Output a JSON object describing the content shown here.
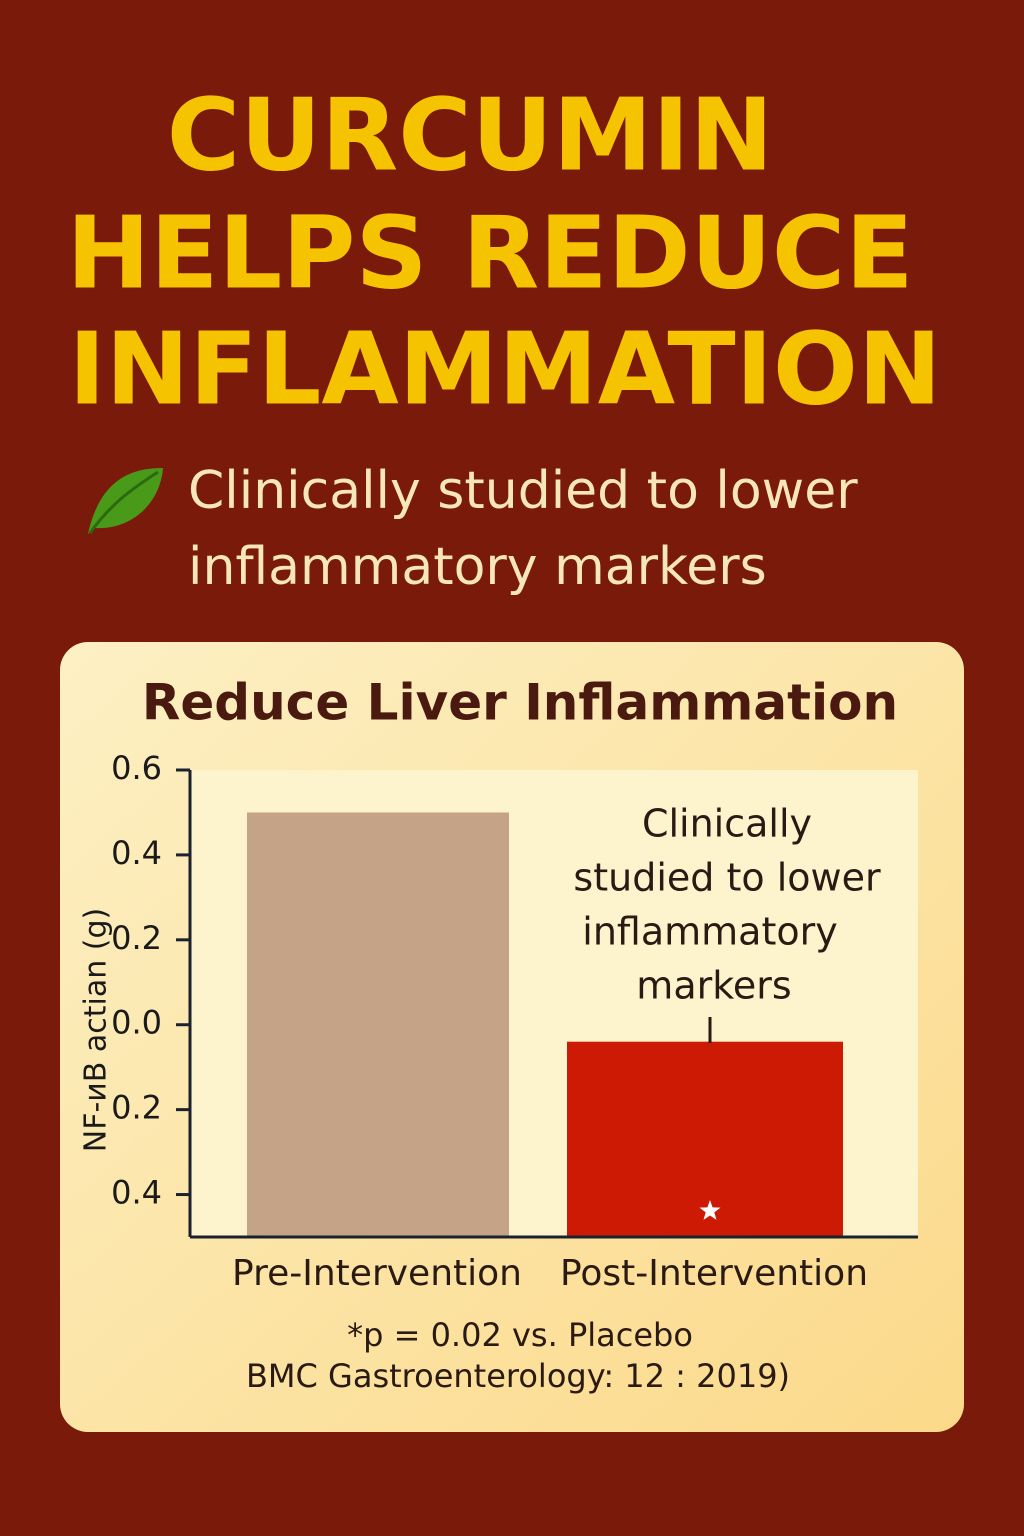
{
  "header": {
    "title": [
      "CURCUMIN",
      "HELPS REDUCE",
      "INFLAMMATION"
    ],
    "subtitle": [
      "Clinically studied to lower",
      "inflammatory markers"
    ]
  },
  "chart_data": {
    "type": "bar",
    "title": "Reduce Liver Inflammation",
    "y_label": "NF-иB actian (g)",
    "categories": [
      "Pre-Intervention",
      "Post-Intervention"
    ],
    "values": [
      0.5,
      -0.04
    ],
    "colors": [
      "#c4a386",
      "#cc1a05"
    ],
    "ylim": [
      -0.5,
      0.6
    ],
    "yticks": [
      0.6,
      0.4,
      0.2,
      {
        "value": 0,
        "label": "0.0"
      },
      {
        "value": -0.2,
        "label": "0.2"
      },
      {
        "value": -0.4,
        "label": "0.4"
      }
    ],
    "grid": false,
    "annotation": [
      "Clinically",
      "studied to lower",
      "inflammatory",
      "markers"
    ],
    "footnote": [
      "*p = 0.02 vs. Placebo",
      "BMC Gastroenterology: 12 : 2019)"
    ]
  }
}
